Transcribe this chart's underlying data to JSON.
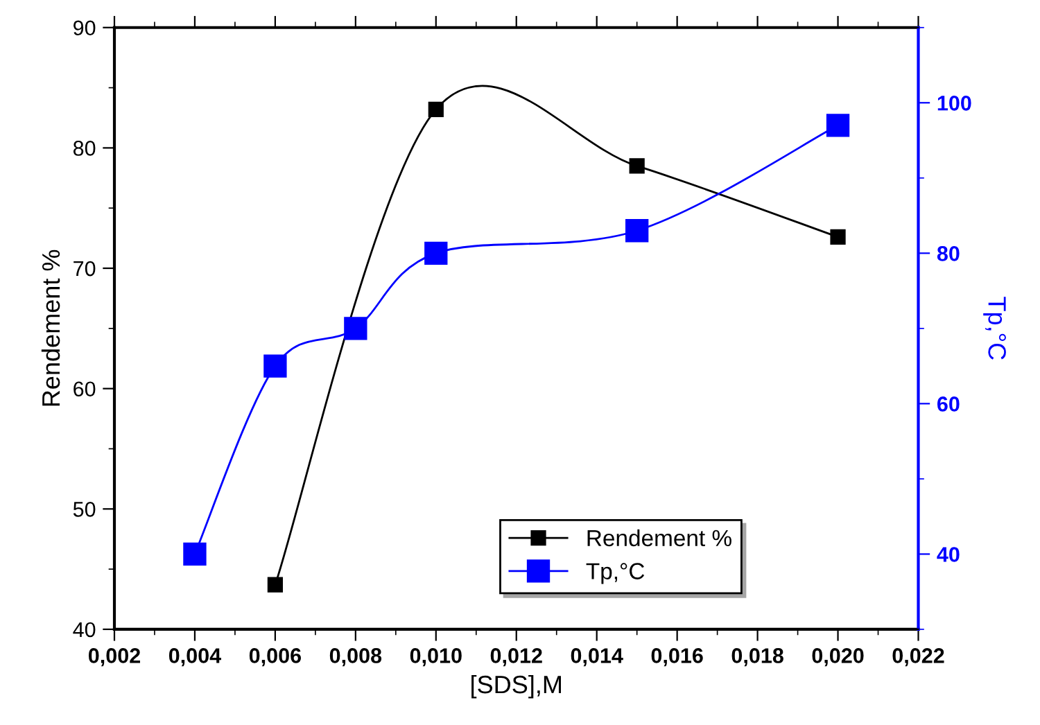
{
  "chart_data": {
    "type": "line",
    "xlabel": "[SDS],M",
    "ylabel": "Rendement %",
    "y2label": "Tp,°C",
    "xlim": [
      0.002,
      0.022
    ],
    "xticks": [
      {
        "value": 0.002,
        "label": "0,002"
      },
      {
        "value": 0.004,
        "label": "0,004"
      },
      {
        "value": 0.006,
        "label": "0,006"
      },
      {
        "value": 0.008,
        "label": "0,008"
      },
      {
        "value": 0.01,
        "label": "0,010"
      },
      {
        "value": 0.012,
        "label": "0,012"
      },
      {
        "value": 0.014,
        "label": "0,014"
      },
      {
        "value": 0.016,
        "label": "0,016"
      },
      {
        "value": 0.018,
        "label": "0,018"
      },
      {
        "value": 0.02,
        "label": "0,020"
      },
      {
        "value": 0.022,
        "label": "0,022"
      }
    ],
    "ylim": [
      40,
      90
    ],
    "yticks": [
      40,
      50,
      60,
      70,
      80,
      90
    ],
    "y2lim": [
      30,
      110
    ],
    "y2ticks": [
      40,
      60,
      80,
      100
    ],
    "marker": "square",
    "legend": "bottom right",
    "grid": false,
    "series": [
      {
        "name": "Rendement %",
        "color": "#000000",
        "x": [
          0.006,
          0.01,
          0.015,
          0.02
        ],
        "values": [
          43.7,
          83.2,
          78.5,
          72.6
        ]
      },
      {
        "name": "Tp,°C",
        "color": "#0000ff",
        "axis": "y2",
        "x": [
          0.004,
          0.006,
          0.008,
          0.01,
          0.015,
          0.02
        ],
        "values": [
          40,
          65,
          70,
          80,
          83,
          97
        ]
      }
    ]
  }
}
